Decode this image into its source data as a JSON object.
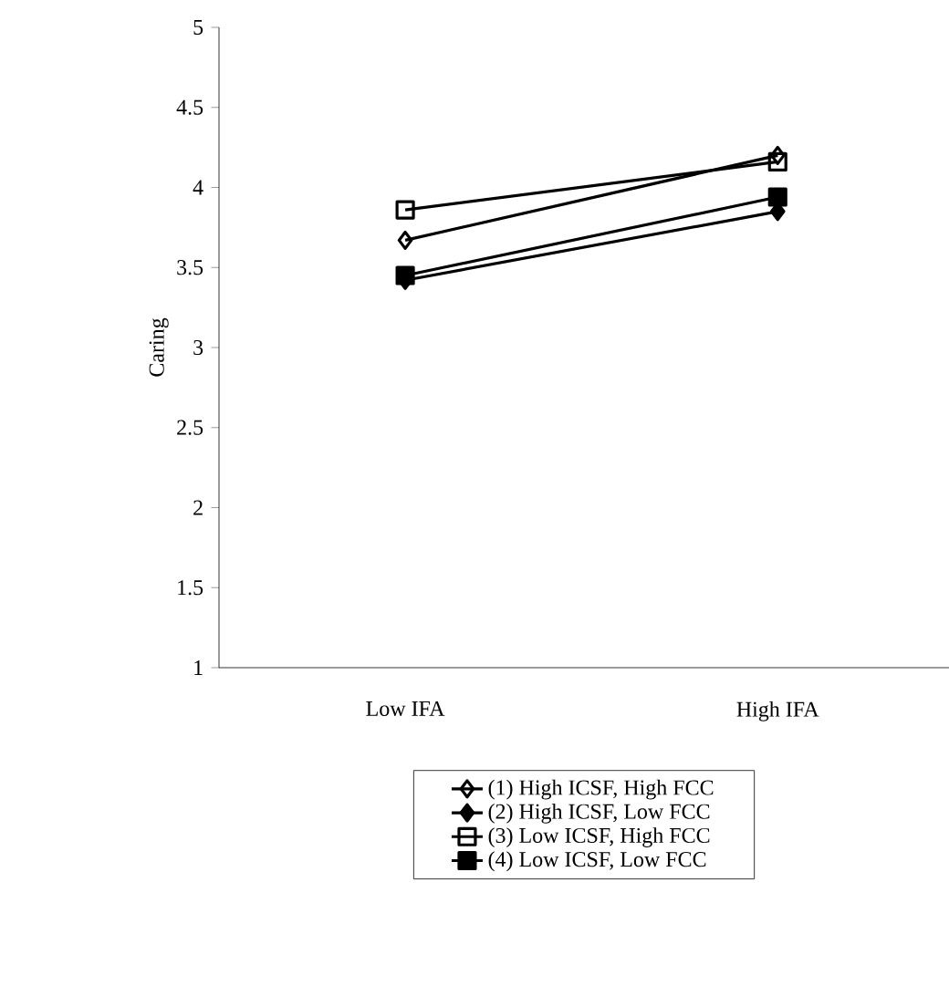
{
  "chart_data": {
    "type": "line",
    "ylabel": "Caring",
    "categories": [
      "Low IFA",
      "High IFA"
    ],
    "series": [
      {
        "name": "(1) High ICSF, High FCC",
        "color": "#000000",
        "marker": "diamond",
        "values": [
          3.67,
          4.2
        ]
      },
      {
        "name": "(2) High ICSF, Low FCC",
        "color": "#000000",
        "marker": "diamond",
        "values": [
          3.42,
          3.85
        ]
      },
      {
        "name": "(3) Low ICSF, High FCC",
        "color": "#000000",
        "marker": "square",
        "values": [
          3.86,
          4.16
        ]
      },
      {
        "name": "(4) Low ICSF, Low FCC",
        "color": "#000000",
        "marker": "square",
        "values": [
          3.45,
          3.94
        ]
      }
    ],
    "ylim": [
      1,
      5
    ],
    "yticks": [
      1,
      1.5,
      2,
      2.5,
      3,
      3.5,
      4,
      4.5,
      5
    ],
    "grid": false,
    "legend": "bottom",
    "line_style": "solid"
  }
}
